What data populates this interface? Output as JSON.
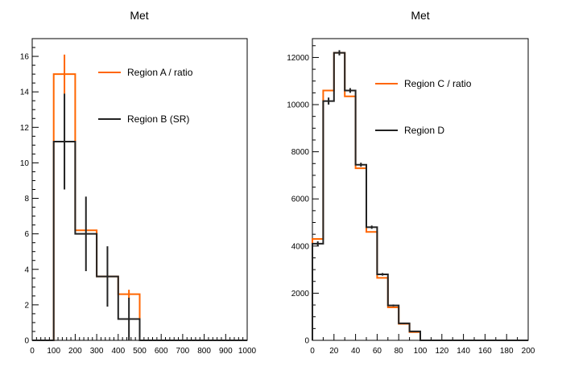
{
  "chart_data": [
    {
      "type": "histogram",
      "title": "Met",
      "xlim": [
        0,
        1000
      ],
      "ylim": [
        0,
        17
      ],
      "x_ticks": [
        0,
        100,
        200,
        300,
        400,
        500,
        600,
        700,
        800,
        900,
        1000
      ],
      "y_ticks": [
        0,
        2,
        4,
        6,
        8,
        10,
        12,
        14,
        16
      ],
      "bin_edges": [
        0,
        100,
        200,
        300,
        400,
        500,
        600,
        700,
        800,
        900,
        1000
      ],
      "series": [
        {
          "name": "Region A / ratio",
          "color": "#ff6600",
          "values": [
            0,
            15.0,
            6.2,
            3.6,
            2.6,
            0,
            0,
            0,
            0,
            0
          ],
          "errors": [
            0,
            1.1,
            0.0,
            0.0,
            0.25,
            0,
            0,
            0,
            0,
            0
          ]
        },
        {
          "name": "Region B (SR)",
          "color": "#222222",
          "values": [
            0,
            11.2,
            6.0,
            3.6,
            1.2,
            0,
            0,
            0,
            0,
            0
          ],
          "errors": [
            0,
            2.7,
            2.1,
            1.7,
            1.2,
            0,
            0,
            0,
            0,
            0
          ]
        }
      ]
    },
    {
      "type": "histogram",
      "title": "Met",
      "xlim": [
        0,
        200
      ],
      "ylim": [
        0,
        12800
      ],
      "x_ticks": [
        0,
        20,
        40,
        60,
        80,
        100,
        120,
        140,
        160,
        180,
        200
      ],
      "y_ticks": [
        0,
        2000,
        4000,
        6000,
        8000,
        10000,
        12000
      ],
      "bin_edges": [
        0,
        10,
        20,
        30,
        40,
        50,
        60,
        70,
        80,
        90,
        100,
        110,
        120,
        130,
        140,
        150,
        160,
        170,
        180,
        190,
        200
      ],
      "series": [
        {
          "name": "Region C / ratio",
          "color": "#ff6600",
          "values": [
            4300,
            10600,
            12200,
            10350,
            7300,
            4600,
            2650,
            1400,
            700,
            350,
            0,
            0,
            0,
            0,
            0,
            0,
            0,
            0,
            0,
            0
          ],
          "errors": [
            0,
            0,
            0,
            0,
            0,
            0,
            0,
            0,
            0,
            0,
            0,
            0,
            0,
            0,
            0,
            0,
            0,
            0,
            0,
            0
          ]
        },
        {
          "name": "Region D",
          "color": "#222222",
          "values": [
            4100,
            10150,
            12200,
            10600,
            7450,
            4800,
            2800,
            1480,
            720,
            380,
            0,
            0,
            0,
            0,
            0,
            0,
            0,
            0,
            0,
            0
          ],
          "errors": [
            100,
            150,
            110,
            100,
            85,
            70,
            55,
            40,
            28,
            20,
            0,
            0,
            0,
            0,
            0,
            0,
            0,
            0,
            0,
            0
          ]
        }
      ]
    }
  ]
}
